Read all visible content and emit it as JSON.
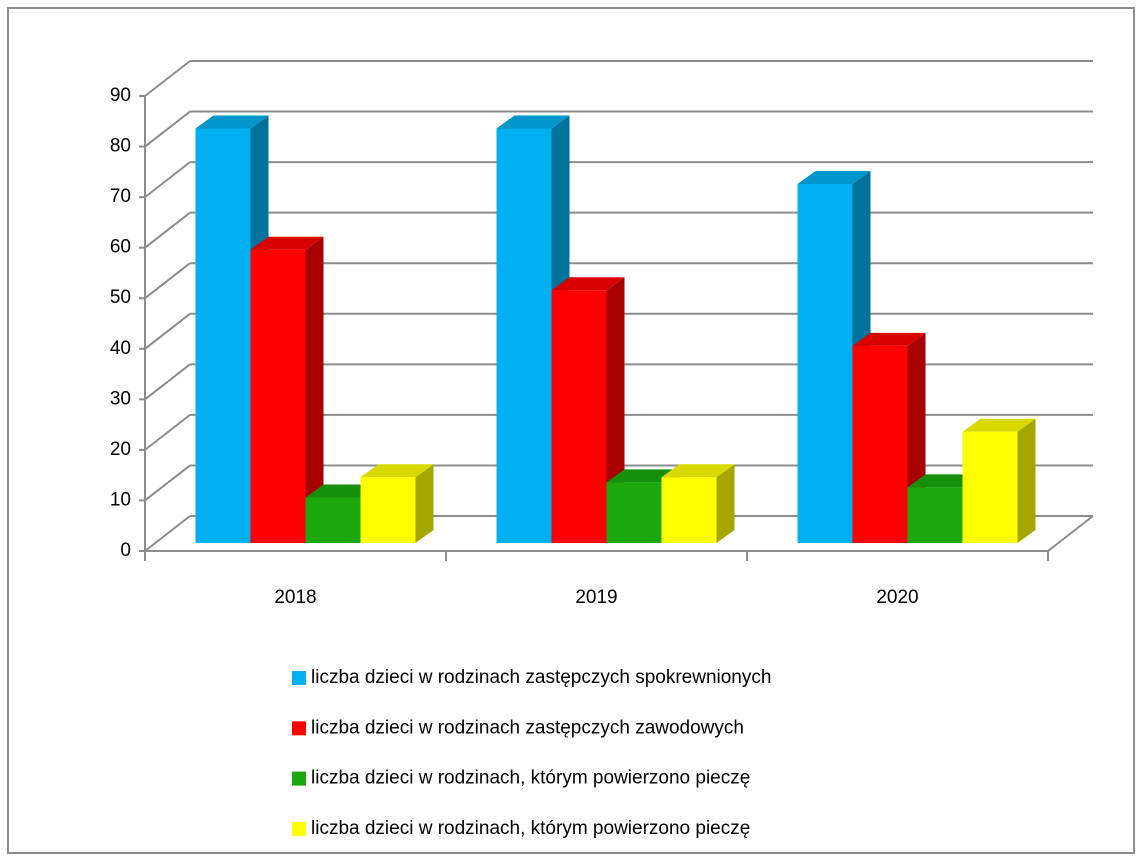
{
  "chart_data": {
    "type": "bar3d",
    "categories": [
      "2018",
      "2019",
      "2020"
    ],
    "series": [
      {
        "name": "liczba dzieci w rodzinach zastępczych spokrewnionych",
        "color": "#00b0f0",
        "values": [
          82,
          82,
          71
        ]
      },
      {
        "name": "liczba dzieci w rodzinach zastępczych zawodowych",
        "color": "#ff0000",
        "values": [
          58,
          50,
          39
        ]
      },
      {
        "name": "liczba dzieci w rodzinach, którym powierzono pieczę",
        "color": "#1aa80c",
        "values": [
          9,
          12,
          11
        ]
      },
      {
        "name": "liczba dzieci w rodzinach, którym powierzono pieczę",
        "color": "#ffff00",
        "values": [
          13,
          13,
          22
        ]
      }
    ],
    "ylim": [
      0,
      90
    ],
    "yticks": [
      0,
      10,
      20,
      30,
      40,
      50,
      60,
      70,
      80,
      90
    ],
    "grid": true,
    "legend": "bottom"
  }
}
